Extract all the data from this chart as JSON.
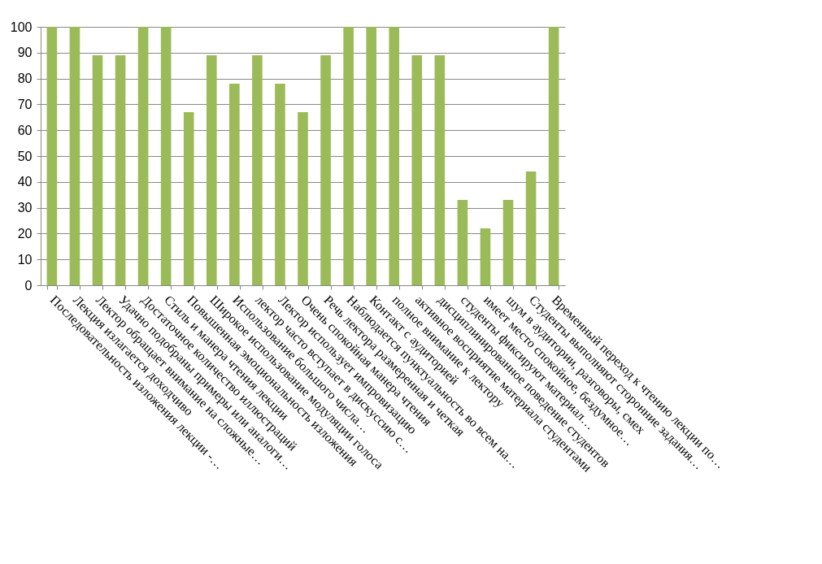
{
  "chart_data": {
    "type": "bar",
    "categories": [
      "Последовательность изложения лекции -…",
      "Лекция излагается доходчиво",
      "Лектор обращает внимание на сложные…",
      "Удачно подобраны примеры или аналоги…",
      "Достаточное количество иллюстраций",
      "Стиль и манера чтения лекции",
      "Повышенная эмоциональность изложения",
      "Широкое использование модуляции голоса",
      "Использование большого числа…",
      "лектор часто вступает в дискуссию с…",
      "Лектор использует импровизацию",
      "Очень спокойная манера чтения",
      "Речь лектора размеренная и четкая",
      "Наблюдается пунктуальность во всем на…",
      "Контакт с аудиторией",
      "полное внимание к лектору",
      "активное восприятие материала студентами",
      "дисциплинированное поведение студентов",
      "студенты фиксируют материал…",
      "имеет место спокойное, бездумное…",
      "шум в аудитории, разговоры, смех",
      "Студенты выполняют сторонние задания…",
      "Временный переход к чтению лекции по…"
    ],
    "values": [
      100,
      100,
      89,
      89,
      100,
      100,
      67,
      89,
      78,
      89,
      78,
      67,
      89,
      100,
      100,
      100,
      89,
      89,
      33,
      22,
      33,
      44,
      100
    ],
    "color": "#9bbb59",
    "ylim": [
      0,
      100
    ],
    "yticks": [
      0,
      10,
      20,
      30,
      40,
      50,
      60,
      70,
      80,
      90,
      100
    ],
    "grid": "y"
  }
}
